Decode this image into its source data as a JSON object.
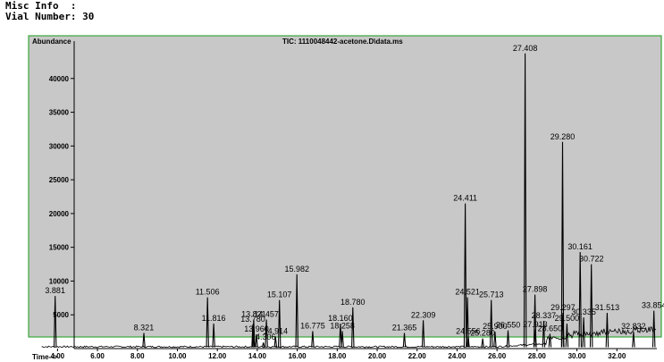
{
  "header": {
    "misc_info": "Misc Info  :",
    "vial_number": "Vial Number: 30"
  },
  "colors": {
    "plot_background": "#c8c8c8",
    "frame": "#3aa83a",
    "trace": "#000000"
  },
  "chart_data": {
    "type": "line",
    "title": "TIC: 1110048442-acetone.D\\data.ms",
    "ylabel": "Abundance",
    "xlabel": "Time-->",
    "xlim": [
      3.0,
      34.0
    ],
    "ylim": [
      0,
      45000
    ],
    "x_ticks": [
      "4.00",
      "6.00",
      "8.00",
      "10.00",
      "12.00",
      "14.00",
      "16.00",
      "18.00",
      "20.00",
      "22.00",
      "24.00",
      "26.00",
      "28.00",
      "30.00",
      "32.00"
    ],
    "y_ticks": [
      "5000",
      "10000",
      "15000",
      "20000",
      "25000",
      "30000",
      "35000",
      "40000"
    ],
    "peaks": [
      {
        "time": 3.881,
        "abundance": 7800,
        "label": "3.881"
      },
      {
        "time": 8.321,
        "abundance": 2300,
        "label": "8.321"
      },
      {
        "time": 11.506,
        "abundance": 7600,
        "label": "11.506"
      },
      {
        "time": 11.816,
        "abundance": 3700,
        "label": "11.816"
      },
      {
        "time": 13.821,
        "abundance": 4300,
        "label": "13.821"
      },
      {
        "time": 13.78,
        "abundance": 3600,
        "label": "13.780"
      },
      {
        "time": 14.457,
        "abundance": 4300,
        "label": "14.457"
      },
      {
        "time": 14.914,
        "abundance": 1800,
        "label": "14.914"
      },
      {
        "time": 13.96,
        "abundance": 2100,
        "label": "13.960"
      },
      {
        "time": 14.306,
        "abundance": 900,
        "label": "14.306"
      },
      {
        "time": 15.107,
        "abundance": 7200,
        "label": "15.107"
      },
      {
        "time": 15.982,
        "abundance": 11000,
        "label": "15.982"
      },
      {
        "time": 16.775,
        "abundance": 2600,
        "label": "16.775"
      },
      {
        "time": 18.16,
        "abundance": 3700,
        "label": "18.160"
      },
      {
        "time": 18.258,
        "abundance": 2600,
        "label": "18.258"
      },
      {
        "time": 18.78,
        "abundance": 6100,
        "label": "18.780"
      },
      {
        "time": 21.365,
        "abundance": 2300,
        "label": "21.365"
      },
      {
        "time": 22.309,
        "abundance": 4200,
        "label": "22.309"
      },
      {
        "time": 24.411,
        "abundance": 21500,
        "label": "24.411"
      },
      {
        "time": 24.521,
        "abundance": 7600,
        "label": "24.521"
      },
      {
        "time": 24.556,
        "abundance": 1800,
        "label": "24.556"
      },
      {
        "time": 25.713,
        "abundance": 7200,
        "label": "25.713"
      },
      {
        "time": 25.28,
        "abundance": 1500,
        "label": "25.280"
      },
      {
        "time": 26.55,
        "abundance": 2700,
        "label": "26.550"
      },
      {
        "time": 25.9,
        "abundance": 2500,
        "label": "25.900"
      },
      {
        "time": 27.408,
        "abundance": 43700,
        "label": "27.408"
      },
      {
        "time": 27.898,
        "abundance": 8000,
        "label": "27.898"
      },
      {
        "time": 28.337,
        "abundance": 4100,
        "label": "28.337"
      },
      {
        "time": 27.913,
        "abundance": 2800,
        "label": "27.913"
      },
      {
        "time": 28.65,
        "abundance": 2200,
        "label": "28.650"
      },
      {
        "time": 29.28,
        "abundance": 30600,
        "label": "29.280"
      },
      {
        "time": 29.297,
        "abundance": 5300,
        "label": "29.297"
      },
      {
        "time": 29.5,
        "abundance": 3700,
        "label": "29.500"
      },
      {
        "time": 30.161,
        "abundance": 14300,
        "label": "30.161"
      },
      {
        "time": 30.335,
        "abundance": 4600,
        "label": "30.335"
      },
      {
        "time": 30.722,
        "abundance": 12500,
        "label": "30.722"
      },
      {
        "time": 31.513,
        "abundance": 5300,
        "label": "31.513"
      },
      {
        "time": 32.832,
        "abundance": 2500,
        "label": "32.832"
      },
      {
        "time": 33.854,
        "abundance": 5600,
        "label": "33.854"
      }
    ]
  }
}
